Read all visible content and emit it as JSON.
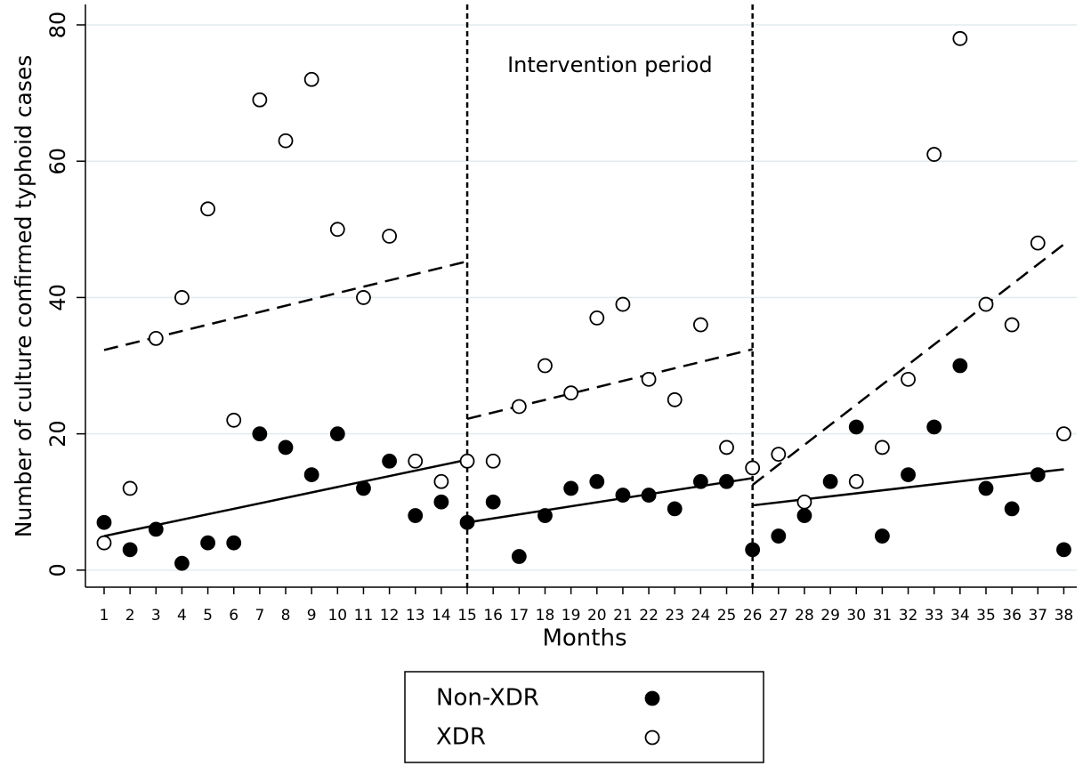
{
  "chart_data": {
    "type": "scatter",
    "x_label": "Months",
    "y_label": "Number of culture confirmed typhoid cases",
    "annotation": "Intervention period",
    "intervention_bounds": [
      15,
      26
    ],
    "x": [
      1,
      2,
      3,
      4,
      5,
      6,
      7,
      8,
      9,
      10,
      11,
      12,
      13,
      14,
      15,
      16,
      17,
      18,
      19,
      20,
      21,
      22,
      23,
      24,
      25,
      26,
      27,
      28,
      29,
      30,
      31,
      32,
      33,
      34,
      35,
      36,
      37,
      38
    ],
    "series": [
      {
        "name": "Non-XDR",
        "color": "#000000",
        "marker": "filled",
        "line_style": "solid",
        "values": [
          7,
          3,
          6,
          1,
          4,
          4,
          20,
          18,
          14,
          20,
          12,
          16,
          8,
          10,
          7,
          10,
          2,
          8,
          12,
          13,
          11,
          11,
          9,
          13,
          13,
          3,
          5,
          8,
          13,
          21,
          5,
          14,
          21,
          30,
          12,
          9,
          14,
          3
        ],
        "trend": [
          {
            "x": [
              1,
              15
            ],
            "values": [
              5,
              16.2
            ]
          },
          {
            "x": [
              15,
              26
            ],
            "values": [
              7,
              13.5
            ]
          },
          {
            "x": [
              26,
              38
            ],
            "values": [
              9.5,
              14.8
            ]
          }
        ]
      },
      {
        "name": "XDR",
        "color": "#000000",
        "marker": "open",
        "line_style": "dashed",
        "values": [
          4,
          12,
          34,
          40,
          53,
          22,
          69,
          63,
          72,
          50,
          40,
          49,
          16,
          13,
          16,
          16,
          24,
          30,
          26,
          37,
          39,
          28,
          25,
          36,
          18,
          15,
          17,
          10,
          null,
          13,
          18,
          28,
          61,
          78,
          39,
          36,
          48,
          20
        ],
        "trend": [
          {
            "x": [
              1,
              15
            ],
            "values": [
              32.3,
              45.3
            ]
          },
          {
            "x": [
              15,
              26
            ],
            "values": [
              22.2,
              32.4
            ]
          },
          {
            "x": [
              26,
              38
            ],
            "values": [
              12.5,
              47.8
            ]
          }
        ]
      }
    ],
    "xlim": [
      0.28,
      38.5
    ],
    "xticks": [
      1,
      2,
      3,
      4,
      5,
      6,
      7,
      8,
      9,
      10,
      11,
      12,
      13,
      14,
      15,
      16,
      17,
      18,
      19,
      20,
      21,
      22,
      23,
      24,
      25,
      26,
      27,
      28,
      29,
      30,
      31,
      32,
      33,
      34,
      35,
      36,
      37,
      38
    ],
    "ylim": [
      -2.5,
      83
    ],
    "yticks": [
      0,
      20,
      40,
      60,
      80
    ],
    "grid": true
  }
}
